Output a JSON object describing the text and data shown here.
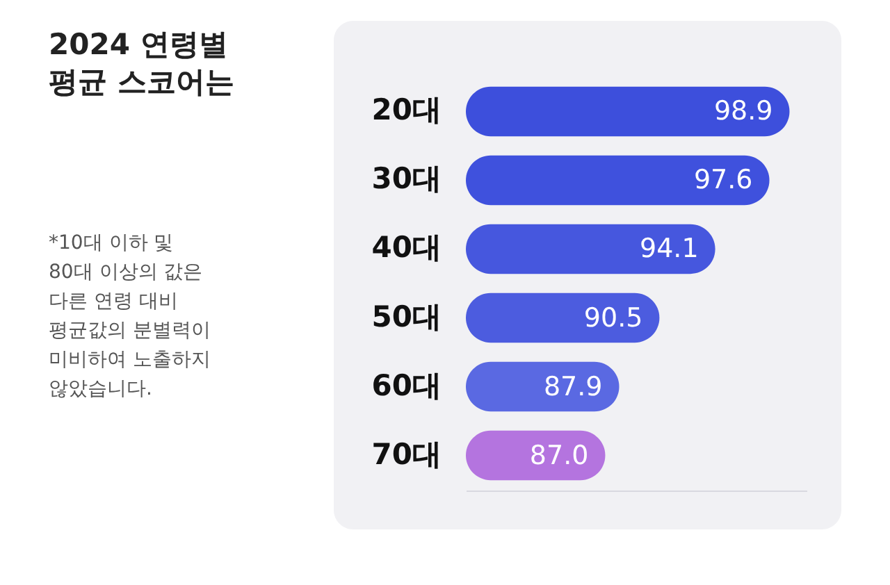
{
  "chart_data": {
    "type": "bar",
    "orientation": "horizontal",
    "title": "2024 연령별 평균 스코어는",
    "annotations": [
      "*10대 이하 및 80대 이상의 값은 다른 연령 대비 평균값의 분별력이 미비하여 노출하지 않았습니다."
    ],
    "categories": [
      "20대",
      "30대",
      "40대",
      "50대",
      "60대",
      "70대"
    ],
    "values": [
      98.9,
      97.6,
      94.1,
      90.5,
      87.9,
      87.0
    ],
    "colors": [
      "#3d4fdc",
      "#3f51dd",
      "#4657de",
      "#4c5cdf",
      "#5a69e2",
      "#b474df"
    ],
    "value_labels": [
      "98.9",
      "97.6",
      "94.1",
      "90.5",
      "87.9",
      "87.0"
    ],
    "xlim": [
      78,
      100
    ],
    "tick_labels": "y",
    "grid": false,
    "legend": false
  }
}
